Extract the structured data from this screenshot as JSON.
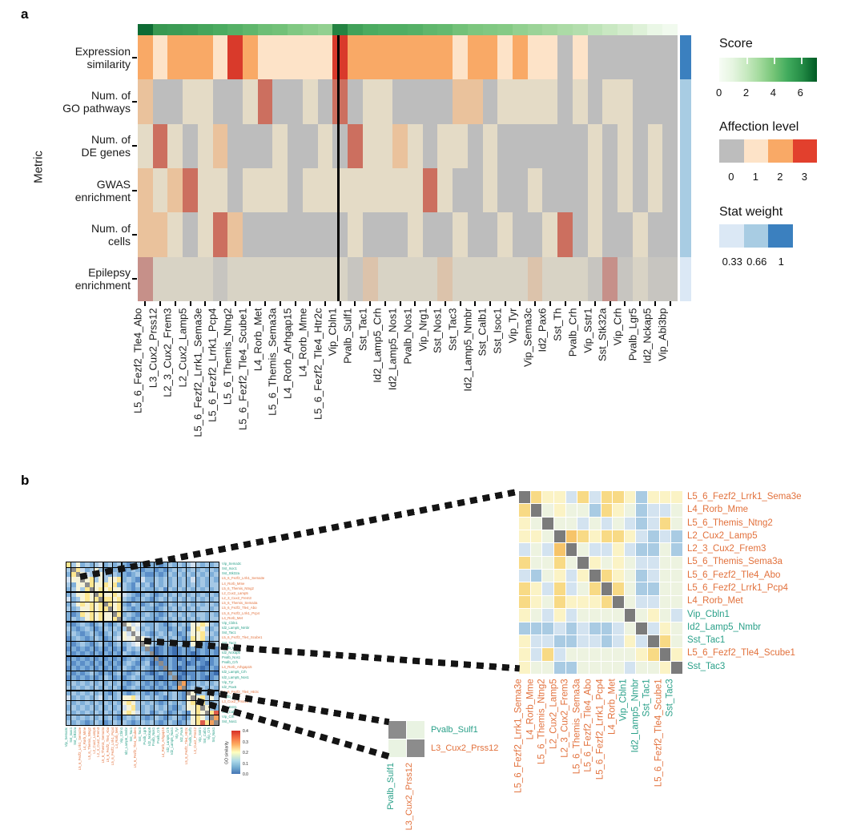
{
  "colors": {
    "excitatory_label": "#e2713c",
    "inhibitory_label": "#2aa089",
    "score_legend_colors": [
      "#f7fcf5",
      "#74c476",
      "#005a24"
    ],
    "affection_legend_colors": [
      "#bdbdbd",
      "#fde3c8",
      "#f9a966",
      "#e2402d"
    ],
    "stat_legend_colors": [
      "#dbe8f5",
      "#a8cce3",
      "#3b80bf"
    ]
  },
  "chart_data": {
    "panel_a": {
      "type": "heatmap",
      "label": "a",
      "y_axis_label": "Metric",
      "row_labels": [
        [
          "Expression",
          "similarity"
        ],
        [
          "Num. of",
          "GO pathways"
        ],
        [
          "Num. of",
          "DE genes"
        ],
        [
          "GWAS",
          "enrichment"
        ],
        [
          "Num. of",
          "cells"
        ],
        [
          "Epilepsy",
          "enrichment"
        ]
      ],
      "columns": [
        "L5_6_Fezf2_Tle4_Abo",
        "L3_Cux2_Prss12",
        "L2_3_Cux2_Frem3",
        "L2_Cux2_Lamp5",
        "L5_6_Fezf2_Lrrk1_Sema3e",
        "L5_6_Fezf2_Lrrk1_Pcp4",
        "L5_6_Themis_Ntng2",
        "L5_6_Fezf2_Tle4_Scube1",
        "L4_Rorb_Met",
        "L5_6_Themis_Sema3a",
        "L4_Rorb_Arhgap15",
        "L4_Rorb_Mme",
        "L5_6_Fezf2_Tle4_Htr2c",
        "Vip_Cbln1",
        "Pvalb_Sulf1",
        "Sst_Tac1",
        "Id2_Lamp5_Crh",
        "Id2_Lamp5_Nos1",
        "Pvalb_Nos1",
        "Vip_Nrg1",
        "Sst_Nos1",
        "Sst_Tac3",
        "Id2_Lamp5_Nmbr",
        "Sst_Calb1",
        "Sst_Isoc1",
        "Vip_Tyr",
        "Vip_Sema3c",
        "Id2_Pax6",
        "Sst_Th",
        "Pvalb_Crh",
        "Vip_Sstr1",
        "Sst_Stk32a",
        "Vip_Crh",
        "Pvalb_Lgr5",
        "Id2_Nckap5",
        "Vip_Abi3bp"
      ],
      "scores": [
        6.8,
        5.6,
        5.5,
        5.4,
        5.2,
        5.0,
        4.8,
        4.6,
        4.3,
        4.2,
        3.9,
        3.7,
        3.5,
        6.2,
        5.3,
        5.0,
        4.9,
        4.9,
        4.8,
        4.6,
        4.5,
        4.2,
        4.0,
        3.9,
        3.8,
        3.5,
        3.3,
        3.1,
        2.9,
        2.7,
        2.4,
        2.1,
        1.8,
        1.4,
        0.9,
        0.4
      ],
      "affection_levels": [
        [
          2,
          1,
          2,
          2,
          2,
          1,
          3,
          2,
          1,
          1,
          1,
          1,
          1,
          3,
          2,
          2,
          2,
          2,
          2,
          2,
          2,
          1,
          2,
          2,
          1,
          2,
          1,
          1,
          0,
          1,
          0,
          0,
          0,
          0,
          0,
          0
        ],
        [
          2,
          0,
          0,
          1,
          1,
          0,
          0,
          1,
          3,
          0,
          0,
          1,
          0,
          3,
          0,
          1,
          1,
          0,
          0,
          0,
          0,
          2,
          2,
          0,
          1,
          1,
          1,
          1,
          0,
          1,
          0,
          1,
          1,
          0,
          0,
          0
        ],
        [
          1,
          3,
          1,
          0,
          1,
          2,
          0,
          0,
          0,
          1,
          0,
          0,
          1,
          0,
          3,
          1,
          1,
          2,
          1,
          0,
          1,
          1,
          0,
          1,
          0,
          0,
          0,
          0,
          0,
          0,
          1,
          0,
          1,
          0,
          1,
          0
        ],
        [
          2,
          1,
          2,
          3,
          1,
          1,
          0,
          1,
          1,
          1,
          0,
          1,
          1,
          1,
          1,
          1,
          1,
          1,
          1,
          3,
          1,
          0,
          0,
          1,
          0,
          0,
          1,
          0,
          0,
          0,
          1,
          0,
          1,
          0,
          1,
          0
        ],
        [
          2,
          2,
          1,
          0,
          1,
          3,
          2,
          0,
          0,
          0,
          0,
          0,
          0,
          0,
          1,
          0,
          0,
          0,
          1,
          0,
          0,
          1,
          0,
          0,
          1,
          0,
          0,
          1,
          3,
          0,
          1,
          0,
          0,
          1,
          0,
          0
        ],
        [
          3,
          1,
          1,
          1,
          1,
          0,
          1,
          1,
          1,
          1,
          1,
          1,
          1,
          1,
          0,
          2,
          1,
          1,
          1,
          1,
          2,
          1,
          1,
          1,
          1,
          1,
          2,
          1,
          1,
          1,
          0,
          3,
          0,
          1,
          0,
          0
        ]
      ],
      "row_stat_weights": [
        1,
        0.66,
        0.66,
        0.66,
        0.66,
        0.33
      ],
      "row_palette_keys": [
        "w1",
        "w066",
        "w066",
        "w066",
        "w066",
        "w033"
      ],
      "palettes": {
        "w1": [
          "#bdbdbd",
          "#fde3c8",
          "#f9a966",
          "#d93a2b"
        ],
        "w066": [
          "#bdbdbd",
          "#e4dbc6",
          "#eac29c",
          "#cc6f5f"
        ],
        "w033": [
          "#c7c5c0",
          "#d8d3c5",
          "#dcc3ab",
          "#c69089"
        ]
      },
      "legends": {
        "score": {
          "title": "Score",
          "ticks": [
            "0",
            "2",
            "4",
            "6"
          ],
          "range": [
            0,
            7.2
          ]
        },
        "affection": {
          "title": "Affection level",
          "labels": [
            "0",
            "1",
            "2",
            "3"
          ]
        },
        "stat": {
          "title": "Stat weight",
          "labels": [
            "0.33",
            "0.66",
            "1"
          ]
        }
      }
    },
    "panel_b": {
      "type": "heatmap",
      "label": "b",
      "left_matrix": {
        "labels": [
          "Vip_Sema3c",
          "Sst_Isoc1",
          "Sst_Stk32a",
          "L5_6_Fezf2_Lrrk1_Sema3e",
          "L4_Rorb_Mme",
          "L5_6_Themis_Ntng2",
          "L2_Cux2_Lamp5",
          "L2_3_Cux2_Frem3",
          "L5_6_Themis_Sema3a",
          "L5_6_Fezf2_Tle4_Abo",
          "L5_6_Fezf2_Lrrk1_Pcp4",
          "L4_Rorb_Met",
          "Vip_Cbln1",
          "Id2_Lamp5_Nmbr",
          "Sst_Tac1",
          "L5_6_Fezf2_Tle4_Scube1",
          "Sst_Tac3",
          "Pvalb_Lgr5",
          "Id2_Nckap5",
          "Pvalb_Nos1",
          "Pvalb_Crh",
          "L4_Rorb_Arhgap15",
          "Id2_Lamp5_Crh",
          "Id2_Lamp5_Nos1",
          "Vip_Tyr",
          "Id2_Pax6",
          "L5_6_Fezf2_Tle4_Htr2c",
          "Pvalb_Sulf1",
          "L3_Cux2_Prss12",
          "Vip_Sstr1",
          "Sst_Calb1",
          "Vip_Crh",
          "Sst_Nos1"
        ],
        "block_bounds": [
          1,
          6,
          8,
          10,
          12,
          16,
          19,
          22,
          24,
          26,
          28,
          31
        ],
        "palette": {
          "0": "#3e6fb0",
          "1": "#5b8ec8",
          "2": "#7fafd9",
          "3": "#a5c8e5",
          "4": "#cfdff0",
          "5": "#edf1ee",
          "6": "#f6f3d8",
          "7": "#fde690",
          "8": "#f4a15d",
          "9": "#dd5b4a",
          "g": "#8c8c8c"
        },
        "rows": [
          "736232342323212321221232323432323",
          "3g7423632323123212212123232323232",
          "27g643263232212321121232323232323",
          "466g67363667232142232323232423232",
          "3266g7667672321323132323232323233",
          "23637g676766321232223132323232323",
          "236676g76676432123212323232323232",
          "4236767g7767321232123232323232323",
          "23676767g767213212321232323232332",
          "323667677g67321232212323232323323",
          "2127676766g7232123221232323233232",
          "23236767667g321232212323232323233",
          "212321232123g64532232123232667632",
          "3212321232323g6423232212321676323",
          "23212321232364g532123232123667432",
          "123212321234656g64232323212767323",
          "2123212321232345g6321232321632123",
          "12121212121213232g101210121212121",
          "212121212121321232g01210121012121",
          "1212121212121232121g0121012101212",
          "21212121212123212301g121210121012",
          "121212121212321232121g21012210121",
          "2121232121232123210121g2101121210",
          "12121212321212321221012g012121012",
          "232323232323212321212121g81232323",
          "3232323232321232121212128g2323232",
          "23232323212321232121232321g623232",
          "423232342323667423232123216g67363",
          "3232323232326763323212323267g7323",
          "23232323232346732323232123667g632",
          "323232323232676423123212321676g79",
          "2323232323212323212321232126763g8",
          "32321232123232123232123212367978g"
        ]
      },
      "colorbar": {
        "title": "GO similarity",
        "ticks": [
          "0.4",
          "0.3",
          "0.2",
          "0.1",
          "0.0"
        ]
      },
      "small_matrix": {
        "labels": [
          "Pvalb_Sulf1",
          "L3_Cux2_Prss12"
        ],
        "palette": {
          "g": "#8c8c8c",
          "c": "#e9f3e2"
        },
        "rows": [
          "gc",
          "cg"
        ]
      },
      "right_matrix": {
        "labels": [
          "L5_6_Fezf2_Lrrk1_Sema3e",
          "L4_Rorb_Mme",
          "L5_6_Themis_Ntng2",
          "L2_Cux2_Lamp5",
          "L2_3_Cux2_Frem3",
          "L5_6_Themis_Sema3a",
          "L5_6_Fezf2_Tle4_Abo",
          "L5_6_Fezf2_Lrrk1_Pcp4",
          "L4_Rorb_Met",
          "Vip_Cbln1",
          "Id2_Lamp5_Nmbr",
          "Sst_Tac1",
          "L5_6_Fezf2_Tle4_Scube1",
          "Sst_Tac3"
        ],
        "palette": {
          "d": "#7b7b7b",
          "O": "#f6c46a",
          "Y": "#f8da85",
          "y": "#fbf3c5",
          "c": "#edf3e0",
          "b": "#d3e3f0",
          "B": "#a9cbe3"
        },
        "rows": [
          "dYyybYbYYyByyy",
          "YdcyccBYycBbbc",
          "ycdccbcbcbBbYc",
          "yycdOYyYYybBbB",
          "bcbOdcbbybBBcB",
          "YccYcdycycbbcc",
          "bBcybydYycBbcc",
          "YybYbcYdYcBBcc",
          "YycYyyyYdcbbcc",
          "ycbybccccdcycb",
          "BBBbBbBBbcdbyc",
          "ybbBBbbBbybdYc",
          "ybYbccccccyYdy",
          "yccBBccccbccyd"
        ]
      }
    }
  }
}
